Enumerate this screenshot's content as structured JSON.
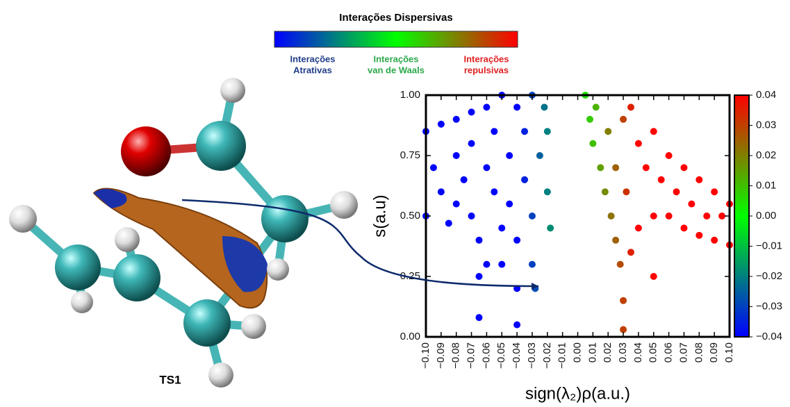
{
  "figure": {
    "title": "Interações Dispersivas",
    "scale_labels": [
      [
        "Interações",
        "Atrativas"
      ],
      [
        "Interações",
        "van de Waals"
      ],
      [
        "Interações",
        "repulsivas"
      ]
    ],
    "structure_label": "TS1"
  },
  "chart_data": {
    "type": "scatter",
    "xlabel": "sign(λ₂)ρ(a.u.)",
    "ylabel": "s(a.u)",
    "xlim": [
      -0.1,
      0.1
    ],
    "ylim": [
      0,
      1
    ],
    "xticks": [
      {
        "value": -0.1,
        "label": "−0.10"
      },
      {
        "value": -0.09,
        "label": "−0.09"
      },
      {
        "value": -0.08,
        "label": "−0.08"
      },
      {
        "value": -0.07,
        "label": "−0.07"
      },
      {
        "value": -0.06,
        "label": "−0.06"
      },
      {
        "value": -0.05,
        "label": "−0.05"
      },
      {
        "value": -0.04,
        "label": "−0.04"
      },
      {
        "value": -0.03,
        "label": "−0.03"
      },
      {
        "value": -0.02,
        "label": "−0.02"
      },
      {
        "value": -0.01,
        "label": "−0.01"
      },
      {
        "value": 0,
        "label": "0.00"
      },
      0.01,
      0.02,
      0.03,
      0.04,
      0.05,
      0.06,
      0.07,
      0.08,
      0.09,
      {
        "value": 0.1,
        "label": "0.10"
      }
    ],
    "yticks": [
      {
        "value": 0,
        "label": "0.00"
      },
      {
        "value": 0.25,
        "label": "0.25"
      },
      {
        "value": 0.5,
        "label": "0.50"
      },
      {
        "value": 0.75,
        "label": "0.75"
      },
      {
        "value": 1,
        "label": "1.00"
      }
    ],
    "colormap": [
      "#0000ff",
      "#00ff00",
      "#ff0000"
    ],
    "clim": [
      -0.04,
      0.04
    ],
    "cticks": [
      {
        "value": -0.04,
        "label": "−0.04"
      },
      {
        "value": -0.03,
        "label": "−0.03"
      },
      {
        "value": -0.02,
        "label": "−0.02"
      },
      {
        "value": -0.01,
        "label": "−0.01"
      },
      {
        "value": 0,
        "label": "0.00"
      },
      0.01,
      0.02,
      0.03,
      0.04
    ],
    "x": [
      -0.1,
      -0.1,
      -0.095,
      -0.09,
      -0.09,
      -0.085,
      -0.08,
      -0.08,
      -0.08,
      -0.075,
      -0.07,
      -0.07,
      -0.07,
      -0.065,
      -0.065,
      -0.065,
      -0.06,
      -0.06,
      -0.06,
      -0.055,
      -0.055,
      -0.05,
      -0.05,
      -0.05,
      -0.045,
      -0.045,
      -0.04,
      -0.04,
      -0.04,
      -0.04,
      -0.035,
      -0.035,
      -0.03,
      -0.03,
      -0.03,
      -0.028,
      -0.025,
      -0.022,
      -0.02,
      -0.02,
      -0.018,
      0.005,
      0.008,
      0.01,
      0.012,
      0.015,
      0.018,
      0.02,
      0.022,
      0.025,
      0.025,
      0.028,
      0.03,
      0.03,
      0.03,
      0.032,
      0.035,
      0.035,
      0.04,
      0.04,
      0.045,
      0.05,
      0.05,
      0.05,
      0.055,
      0.06,
      0.06,
      0.065,
      0.07,
      0.07,
      0.075,
      0.08,
      0.08,
      0.085,
      0.09,
      0.09,
      0.095,
      0.1,
      0.1
    ],
    "values": [
      0.85,
      0.5,
      0.7,
      0.88,
      0.6,
      0.47,
      0.9,
      0.75,
      0.55,
      0.65,
      0.93,
      0.8,
      0.5,
      0.4,
      0.25,
      0.08,
      0.95,
      0.7,
      0.3,
      0.6,
      0.85,
      1.0,
      0.45,
      0.3,
      0.75,
      0.55,
      0.95,
      0.4,
      0.2,
      0.05,
      0.65,
      0.85,
      1.0,
      0.5,
      0.3,
      0.2,
      0.75,
      0.95,
      0.6,
      0.85,
      0.45,
      1.0,
      0.9,
      0.8,
      0.95,
      0.7,
      0.6,
      0.85,
      0.5,
      0.7,
      0.4,
      0.3,
      0.15,
      0.03,
      0.9,
      0.6,
      0.95,
      0.35,
      0.8,
      0.45,
      0.7,
      0.85,
      0.5,
      0.25,
      0.65,
      0.75,
      0.5,
      0.6,
      0.7,
      0.45,
      0.55,
      0.65,
      0.42,
      0.5,
      0.6,
      0.4,
      0.5,
      0.55,
      0.38
    ]
  }
}
